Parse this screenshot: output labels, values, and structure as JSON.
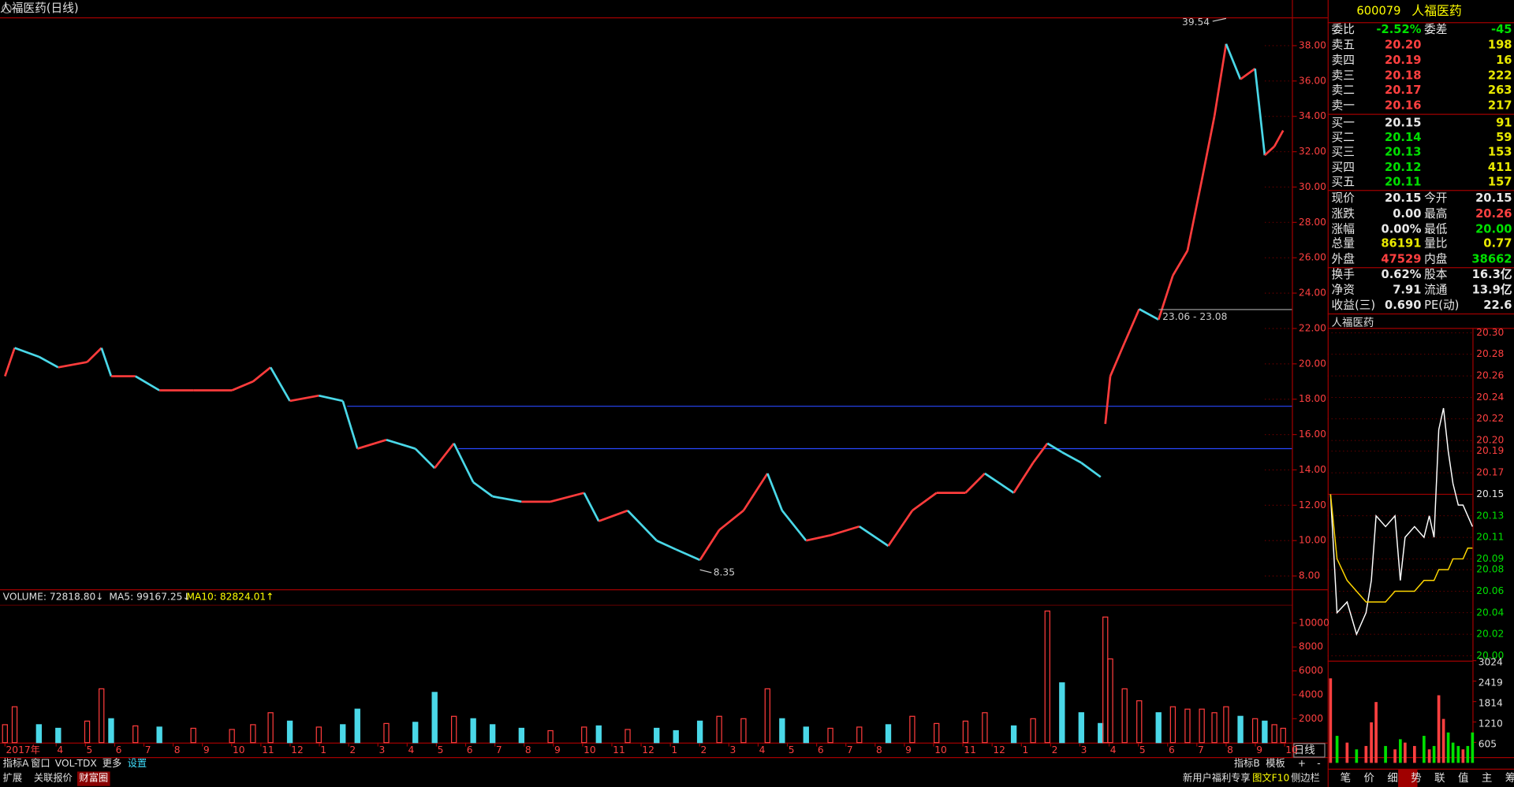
{
  "title": "人福医药(日线)",
  "price_chart": {
    "xlim": [
      -0.17,
      44
    ],
    "ylim": [
      7.3,
      39.6
    ],
    "yticks": [
      {
        "value": 8,
        "label": "8.00"
      },
      {
        "value": 10,
        "label": "10.00"
      },
      {
        "value": 12,
        "label": "12.00"
      },
      {
        "value": 14,
        "label": "14.00"
      },
      {
        "value": 16,
        "label": "16.00"
      },
      {
        "value": 18,
        "label": "18.00"
      },
      {
        "value": 20,
        "label": "20.00"
      },
      {
        "value": 22,
        "label": "22.00"
      },
      {
        "value": 24,
        "label": "24.00"
      },
      {
        "value": 26,
        "label": "26.00"
      },
      {
        "value": 28,
        "label": "28.00"
      },
      {
        "value": 30,
        "label": "30.00"
      },
      {
        "value": 32,
        "label": "32.00"
      },
      {
        "value": 34,
        "label": "34.00"
      },
      {
        "value": 36,
        "label": "36.00"
      },
      {
        "value": 38,
        "label": "38.00"
      }
    ],
    "xticks": [
      {
        "value": 0,
        "label": "2017年"
      },
      {
        "value": 1.75,
        "label": "4"
      },
      {
        "value": 2.75,
        "label": "5"
      },
      {
        "value": 3.75,
        "label": "6"
      },
      {
        "value": 4.75,
        "label": "7"
      },
      {
        "value": 5.75,
        "label": "8"
      },
      {
        "value": 6.75,
        "label": "9"
      },
      {
        "value": 7.75,
        "label": "10"
      },
      {
        "value": 8.75,
        "label": "11"
      },
      {
        "value": 9.75,
        "label": "12"
      },
      {
        "value": 10.75,
        "label": "1"
      },
      {
        "value": 11.75,
        "label": "2"
      },
      {
        "value": 12.75,
        "label": "3"
      },
      {
        "value": 13.75,
        "label": "4"
      },
      {
        "value": 14.75,
        "label": "5"
      },
      {
        "value": 15.75,
        "label": "6"
      },
      {
        "value": 16.75,
        "label": "7"
      },
      {
        "value": 17.75,
        "label": "8"
      },
      {
        "value": 18.75,
        "label": "9"
      },
      {
        "value": 19.75,
        "label": "10"
      },
      {
        "value": 20.75,
        "label": "11"
      },
      {
        "value": 21.75,
        "label": "12"
      },
      {
        "value": 22.75,
        "label": "1"
      },
      {
        "value": 23.75,
        "label": "2"
      },
      {
        "value": 24.75,
        "label": "3"
      },
      {
        "value": 25.75,
        "label": "4"
      },
      {
        "value": 26.75,
        "label": "5"
      },
      {
        "value": 27.75,
        "label": "6"
      },
      {
        "value": 28.75,
        "label": "7"
      },
      {
        "value": 29.75,
        "label": "8"
      },
      {
        "value": 30.75,
        "label": "9"
      },
      {
        "value": 31.75,
        "label": "10"
      },
      {
        "value": 32.75,
        "label": "11"
      },
      {
        "value": 33.75,
        "label": "12"
      },
      {
        "value": 34.75,
        "label": "1"
      },
      {
        "value": 35.75,
        "label": "2"
      },
      {
        "value": 36.75,
        "label": "3"
      },
      {
        "value": 37.75,
        "label": "4"
      },
      {
        "value": 38.75,
        "label": "5"
      },
      {
        "value": 39.75,
        "label": "6"
      },
      {
        "value": 40.75,
        "label": "7"
      },
      {
        "value": 41.75,
        "label": "8"
      },
      {
        "value": 42.75,
        "label": "9"
      },
      {
        "value": 43.75,
        "label": "10"
      }
    ],
    "x": [
      0,
      0.33,
      1.16,
      1.82,
      2.81,
      3.3,
      3.63,
      4.46,
      5.28,
      6.44,
      7.76,
      8.48,
      9.08,
      9.74,
      10.73,
      11.55,
      12.05,
      13.04,
      14.03,
      14.69,
      15.35,
      16.01,
      16.67,
      17.66,
      18.65,
      19.8,
      20.3,
      21.29,
      22.28,
      22.94,
      23.76,
      24.42,
      25.25,
      26.07,
      26.57,
      27.39,
      28.22,
      29.21,
      30.2,
      31.02,
      31.85,
      32.84,
      33.5,
      34.49,
      35.15,
      35.64,
      36.14,
      36.8,
      37.46,
      37.55,
      37.62,
      37.79,
      38.28,
      38.78,
      39.44,
      39.93,
      40.43,
      40.92,
      41.35,
      41.75,
      42.24,
      42.74,
      43.07,
      43.4,
      43.7
    ],
    "close": [
      19.3,
      20.9,
      20.4,
      19.8,
      20.1,
      20.9,
      19.3,
      19.3,
      18.5,
      18.5,
      18.5,
      19.0,
      19.8,
      17.9,
      18.2,
      17.9,
      15.2,
      15.7,
      15.2,
      14.1,
      15.5,
      13.3,
      12.5,
      12.2,
      12.2,
      12.7,
      11.1,
      11.7,
      10.0,
      9.5,
      8.9,
      10.6,
      11.7,
      13.8,
      11.7,
      10.0,
      10.3,
      10.8,
      9.7,
      11.7,
      12.7,
      12.7,
      13.8,
      12.7,
      14.4,
      15.5,
      15.0,
      14.4,
      13.6,
      null,
      16.6,
      19.3,
      21.2,
      23.1,
      22.5,
      25.0,
      26.4,
      30.4,
      34.0,
      38.1,
      36.1,
      36.7,
      31.8,
      32.3,
      33.2
    ],
    "levels": [
      {
        "value": 17.6,
        "from": 11.7
      },
      {
        "value": 15.2,
        "from": 15.5
      }
    ],
    "annotations": [
      {
        "text": "39.54",
        "x": 41.75,
        "y": 39.54
      },
      {
        "text": "8.35",
        "x": 23.76,
        "y": 8.35
      },
      {
        "text": "23.06 - 23.08",
        "x": 39.44,
        "y": 23.07
      }
    ]
  },
  "volume_chart": {
    "header": [
      "VOLUME: 72818.80↓",
      "MA5: 99167.25↓",
      "MA10: 82824.01↑"
    ],
    "ylim": [
      0,
      12740
    ],
    "yticks": [
      2000,
      4000,
      6000,
      8000,
      10000
    ],
    "values": [
      1500,
      3000,
      1500,
      1200,
      1800,
      4500,
      2000,
      1400,
      1300,
      1200,
      1100,
      1500,
      2500,
      1800,
      1300,
      1500,
      2800,
      1600,
      1700,
      4200,
      2200,
      2000,
      1500,
      1200,
      1000,
      1300,
      1400,
      1100,
      1200,
      1000,
      1800,
      2200,
      2000,
      4500,
      2000,
      1300,
      1200,
      1300,
      1500,
      2200,
      1600,
      1800,
      2500,
      1400,
      2000,
      11000,
      5000,
      2500,
      1600,
      null,
      10500,
      7000,
      4500,
      3500,
      2500,
      3000,
      2800,
      2800,
      2500,
      3000,
      2200,
      2000,
      1800,
      1500,
      1200
    ]
  },
  "period_label": "日线",
  "quote": {
    "code": "600079",
    "name": "人福医药",
    "ratio": [
      "委比",
      "-2.52%",
      "委差",
      "-45"
    ],
    "asks": [
      [
        "卖五",
        "20.20",
        "198"
      ],
      [
        "卖四",
        "20.19",
        "16"
      ],
      [
        "卖三",
        "20.18",
        "222"
      ],
      [
        "卖二",
        "20.17",
        "263"
      ],
      [
        "卖一",
        "20.16",
        "217"
      ]
    ],
    "bids": [
      [
        "买一",
        "20.15",
        "91"
      ],
      [
        "买二",
        "20.14",
        "59"
      ],
      [
        "买三",
        "20.13",
        "153"
      ],
      [
        "买四",
        "20.12",
        "411"
      ],
      [
        "买五",
        "20.11",
        "157"
      ]
    ],
    "stats": [
      [
        "现价",
        "20.15",
        "今开",
        "20.15"
      ],
      [
        "涨跌",
        "0.00",
        "最高",
        "20.26"
      ],
      [
        "涨幅",
        "0.00%",
        "最低",
        "20.00"
      ],
      [
        "总量",
        "86191",
        "量比",
        "0.77"
      ],
      [
        "外盘",
        "47529",
        "内盘",
        "38662"
      ]
    ],
    "finance": [
      [
        "换手",
        "0.62%",
        "股本",
        "16.3亿"
      ],
      [
        "净资",
        "7.91",
        "流通",
        "13.9亿"
      ],
      [
        "收益(三)",
        "0.690",
        "PE(动)",
        "22.6"
      ]
    ]
  },
  "intraday": {
    "title": "人福医药",
    "ylim": [
      19.9955,
      20.3045
    ],
    "yticks": [
      {
        "value": 20.3,
        "label": "20.30"
      },
      {
        "value": 20.28,
        "label": "20.28"
      },
      {
        "value": 20.26,
        "label": "20.26"
      },
      {
        "value": 20.24,
        "label": "20.24"
      },
      {
        "value": 20.22,
        "label": "20.22"
      },
      {
        "value": 20.2,
        "label": "20.20"
      },
      {
        "value": 20.19,
        "label": "20.19"
      },
      {
        "value": 20.17,
        "label": "20.17"
      },
      {
        "value": 20.15,
        "label": "20.15"
      },
      {
        "value": 20.13,
        "label": "20.13"
      },
      {
        "value": 20.11,
        "label": "20.11"
      },
      {
        "value": 20.09,
        "label": "20.09"
      },
      {
        "value": 20.08,
        "label": "20.08"
      },
      {
        "value": 20.06,
        "label": "20.06"
      },
      {
        "value": 20.04,
        "label": "20.04"
      },
      {
        "value": 20.02,
        "label": "20.02"
      },
      {
        "value": 20.0,
        "label": "20.00"
      }
    ],
    "x": [
      0,
      11,
      28,
      44,
      60,
      69,
      77,
      93,
      109,
      118,
      126,
      142,
      158,
      167,
      175,
      183,
      191,
      199,
      207,
      216,
      224,
      232,
      240
    ],
    "price": [
      20.15,
      20.04,
      20.05,
      20.02,
      20.04,
      20.07,
      20.13,
      20.12,
      20.13,
      20.07,
      20.11,
      20.12,
      20.11,
      20.13,
      20.11,
      20.21,
      20.23,
      20.19,
      20.16,
      20.14,
      20.14,
      20.13,
      20.12
    ],
    "average": [
      20.15,
      20.09,
      20.07,
      20.06,
      20.05,
      20.05,
      20.05,
      20.05,
      20.06,
      20.06,
      20.06,
      20.06,
      20.07,
      20.07,
      20.07,
      20.08,
      20.08,
      20.08,
      20.09,
      20.09,
      20.09,
      20.1,
      20.1
    ],
    "volume_ylim": [
      0,
      3024
    ],
    "volume_ticks": [
      605,
      1210,
      1814,
      2419,
      3024
    ],
    "volume": [
      2500,
      800,
      600,
      400,
      500,
      1200,
      1800,
      500,
      400,
      700,
      600,
      500,
      800,
      400,
      500,
      2000,
      1300,
      900,
      600,
      500,
      400,
      500,
      900
    ]
  },
  "toolbar": {
    "row1_left": [
      "指标A",
      "窗口",
      "VOL-TDX",
      "更多",
      "设置"
    ],
    "row2_left": [
      "扩展",
      "关联报价",
      "财富圈"
    ],
    "row1_right": [
      "指标B",
      "模板",
      "+",
      "-"
    ],
    "row2_right": [
      "新用户福利专享",
      "图文F10",
      "侧边栏"
    ],
    "tabs": [
      "笔",
      "价",
      "细",
      "势",
      "联",
      "值",
      "主",
      "筹"
    ]
  }
}
